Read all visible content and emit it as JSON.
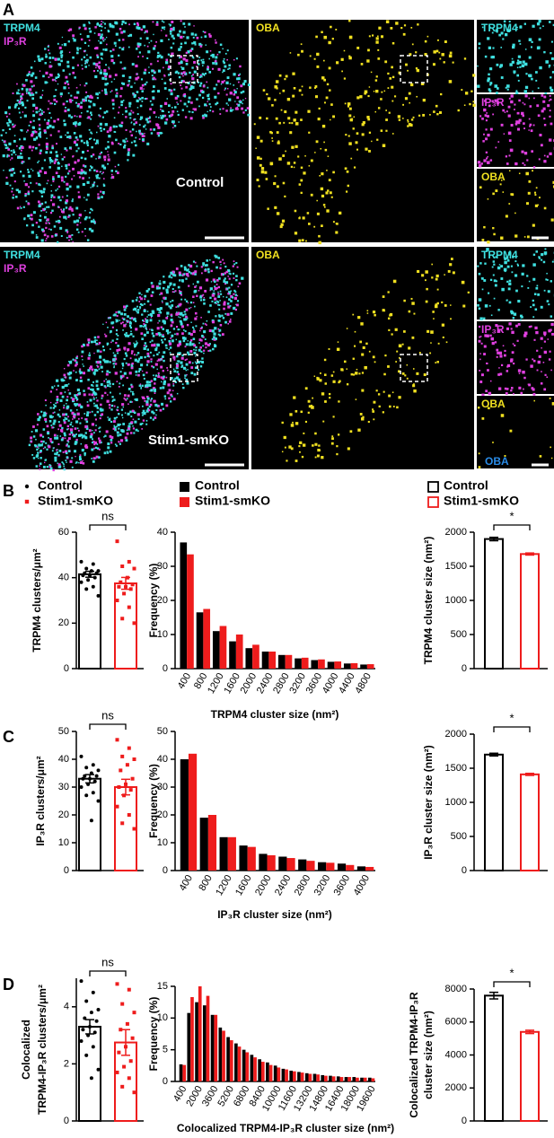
{
  "panel_a": {
    "label": "A",
    "rows": [
      {
        "condition": "Control",
        "merge_labels": [
          "TRPM4",
          "IP₃R"
        ],
        "oba_label": "OBA",
        "inset_labels": [
          "TRPM4",
          "IP₃R",
          "OBA"
        ]
      },
      {
        "condition": "Stim1-smKO",
        "merge_labels": [
          "TRPM4",
          "IP₃R"
        ],
        "oba_label": "OBA",
        "inset_labels": [
          "TRPM4",
          "IP₃R",
          "OBA"
        ],
        "inset_note": "OBA"
      }
    ]
  },
  "panel_labels": [
    "B",
    "C",
    "D"
  ],
  "chart_data": [
    {
      "type": "bar_scatter",
      "ylabel": "TRPM4 clusters/μm²",
      "ylim": [
        0,
        60
      ],
      "yticks": [
        0,
        20,
        40,
        60
      ],
      "annotation": "ns",
      "series": [
        {
          "name": "Control",
          "color": "#000000",
          "marker": "circle",
          "values": [
            41.5
          ],
          "errors": [
            1.3
          ],
          "points": [
            47,
            46,
            44,
            43,
            43,
            42,
            42,
            41,
            41,
            40,
            39,
            38,
            36,
            35,
            32
          ]
        },
        {
          "name": "Stim1-smKO",
          "color": "#ee1c1c",
          "marker": "square",
          "values": [
            37.5
          ],
          "errors": [
            2.6
          ],
          "points": [
            56,
            47,
            45,
            44,
            40,
            38,
            37,
            36,
            36,
            35,
            33,
            30,
            27,
            22,
            20
          ]
        }
      ]
    },
    {
      "type": "grouped_bar",
      "ylabel": "Frequency (%)",
      "xlabel": "TRPM4 cluster size (nm²)",
      "ylim": [
        0,
        40
      ],
      "yticks": [
        0,
        10,
        20,
        30,
        40
      ],
      "categories": [
        "400",
        "800",
        "1200",
        "1600",
        "2000",
        "2400",
        "2800",
        "3200",
        "3600",
        "4000",
        "4400",
        "4800"
      ],
      "series": [
        {
          "name": "Control",
          "color": "#000000",
          "values": [
            37,
            16.5,
            11,
            8,
            6,
            5,
            4,
            3,
            2.5,
            2,
            1.5,
            1.2
          ]
        },
        {
          "name": "Stim1-smKO",
          "color": "#ee1c1c",
          "values": [
            33.5,
            17.5,
            12.5,
            10,
            7,
            5,
            4,
            3.2,
            2.7,
            2.1,
            1.6,
            1.3
          ]
        }
      ]
    },
    {
      "type": "bar",
      "ylabel": "TRPM4 cluster size (nm²)",
      "ylim": [
        0,
        2000
      ],
      "yticks": [
        0,
        500,
        1000,
        1500,
        2000
      ],
      "annotation": "*",
      "series": [
        {
          "name": "Control",
          "color": "#000000",
          "values": [
            1900
          ],
          "errors": [
            25
          ]
        },
        {
          "name": "Stim1-smKO",
          "color": "#ee1c1c",
          "values": [
            1680
          ],
          "errors": [
            15
          ]
        }
      ]
    },
    {
      "type": "bar_scatter",
      "ylabel": "IP₃R clusters/μm²",
      "ylim": [
        0,
        50
      ],
      "yticks": [
        0,
        10,
        20,
        30,
        40,
        50
      ],
      "annotation": "ns",
      "series": [
        {
          "color": "#000000",
          "marker": "circle",
          "values": [
            33
          ],
          "errors": [
            1.5
          ],
          "points": [
            41,
            38,
            37,
            36,
            35,
            34,
            34,
            33,
            33,
            32,
            31,
            30,
            28,
            27,
            25,
            18
          ]
        },
        {
          "color": "#ee1c1c",
          "marker": "square",
          "values": [
            30
          ],
          "errors": [
            2.8
          ],
          "points": [
            47,
            44,
            41,
            40,
            38,
            36,
            33,
            31,
            30,
            29,
            27,
            23,
            20,
            17,
            15
          ]
        }
      ]
    },
    {
      "type": "grouped_bar",
      "ylabel": "Frequency (%)",
      "xlabel": "IP₃R cluster size (nm²)",
      "ylim": [
        0,
        50
      ],
      "yticks": [
        0,
        10,
        20,
        30,
        40,
        50
      ],
      "categories": [
        "400",
        "800",
        "1200",
        "1600",
        "2000",
        "2400",
        "2800",
        "3200",
        "3600",
        "4000"
      ],
      "series": [
        {
          "color": "#000000",
          "values": [
            40,
            19,
            12,
            9,
            6,
            5,
            4,
            3,
            2.5,
            1.5
          ]
        },
        {
          "color": "#ee1c1c",
          "values": [
            42,
            20,
            12,
            8.5,
            5.5,
            4.5,
            3.5,
            2.8,
            2,
            1.3
          ]
        }
      ]
    },
    {
      "type": "bar",
      "ylabel": "IP₃R cluster size (nm²)",
      "ylim": [
        0,
        2000
      ],
      "yticks": [
        0,
        500,
        1000,
        1500,
        2000
      ],
      "annotation": "*",
      "series": [
        {
          "color": "#000000",
          "values": [
            1700
          ],
          "errors": [
            20
          ]
        },
        {
          "color": "#ee1c1c",
          "values": [
            1410
          ],
          "errors": [
            15
          ]
        }
      ]
    },
    {
      "type": "bar_scatter",
      "ylabel": [
        "Colocalized",
        "TRPM4-IP₃R clusters/μm²"
      ],
      "ylim": [
        0,
        5
      ],
      "yticks": [
        0,
        2,
        4
      ],
      "annotation": "ns",
      "series": [
        {
          "color": "#000000",
          "marker": "circle",
          "values": [
            3.3
          ],
          "errors": [
            0.25
          ],
          "points": [
            4.9,
            4.5,
            4.2,
            3.9,
            3.8,
            3.6,
            3.5,
            3.3,
            3.2,
            3.1,
            3.0,
            2.8,
            2.6,
            2.3,
            1.8,
            1.5
          ]
        },
        {
          "color": "#ee1c1c",
          "marker": "square",
          "values": [
            2.75
          ],
          "errors": [
            0.45
          ],
          "points": [
            4.8,
            4.6,
            4.1,
            3.8,
            3.4,
            3.2,
            2.9,
            2.6,
            2.4,
            2.1,
            1.9,
            1.7,
            1.5,
            1.2,
            1.0
          ]
        }
      ]
    },
    {
      "type": "grouped_bar",
      "ylabel": "Frequency (%)",
      "xlabel": "Colocalized TRPM4-IP₃R cluster size (nm²)",
      "ylim": [
        0,
        15
      ],
      "yticks": [
        0,
        5,
        10,
        15
      ],
      "categories": [
        "400",
        null,
        "2000",
        null,
        "3600",
        null,
        "5200",
        null,
        "6800",
        null,
        "8400",
        null,
        "10000",
        null,
        "11600",
        null,
        "13200",
        null,
        "14800",
        null,
        "16400",
        null,
        "18000",
        null,
        "19600"
      ],
      "series": [
        {
          "color": "#000000",
          "values": [
            2.7,
            10.8,
            12.5,
            12,
            10.5,
            8.5,
            7,
            6,
            5,
            4.2,
            3.5,
            3,
            2.5,
            2,
            1.7,
            1.5,
            1.3,
            1.2,
            1,
            0.9,
            0.8,
            0.7,
            0.7,
            0.6,
            0.6
          ]
        },
        {
          "color": "#ee1c1c",
          "values": [
            2.6,
            13.3,
            15,
            13.5,
            10.5,
            8,
            6.5,
            5.5,
            4.6,
            3.8,
            3.1,
            2.6,
            2.2,
            1.9,
            1.6,
            1.4,
            1.2,
            1.1,
            0.9,
            0.8,
            0.7,
            0.7,
            0.6,
            0.6,
            0.5
          ]
        }
      ]
    },
    {
      "type": "bar",
      "ylabel": [
        "Colocalized TRPM4-IP₃R",
        "cluster size (nm²)"
      ],
      "ylim": [
        0,
        8000
      ],
      "yticks": [
        0,
        2000,
        4000,
        6000,
        8000
      ],
      "annotation": "*",
      "series": [
        {
          "color": "#000000",
          "values": [
            7600
          ],
          "errors": [
            200
          ]
        },
        {
          "color": "#ee1c1c",
          "values": [
            5400
          ],
          "errors": [
            100
          ]
        }
      ]
    }
  ]
}
